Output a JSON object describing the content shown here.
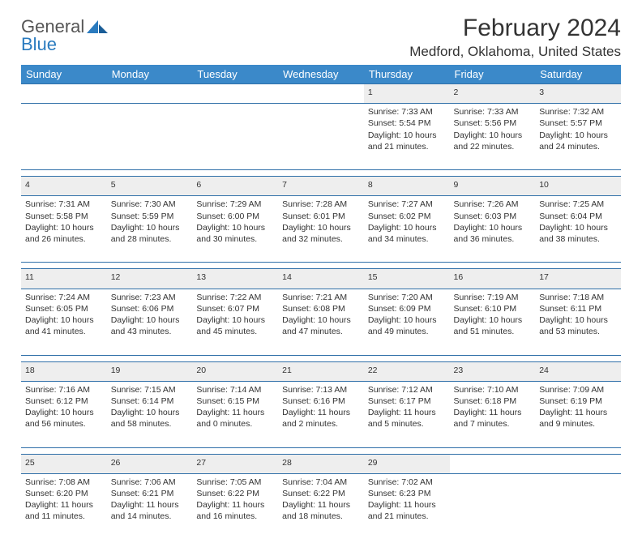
{
  "logo": {
    "part1": "General",
    "part2": "Blue"
  },
  "title": "February 2024",
  "location": "Medford, Oklahoma, United States",
  "colors": {
    "header_bg": "#3b89c9",
    "header_text": "#ffffff",
    "row_border": "#2f6fa8",
    "daynum_bg": "#eeeeee",
    "logo_blue": "#2a7bbf"
  },
  "weekdays": [
    "Sunday",
    "Monday",
    "Tuesday",
    "Wednesday",
    "Thursday",
    "Friday",
    "Saturday"
  ],
  "weeks": [
    [
      null,
      null,
      null,
      null,
      {
        "n": "1",
        "sr": "7:33 AM",
        "ss": "5:54 PM",
        "dl": "10 hours and 21 minutes."
      },
      {
        "n": "2",
        "sr": "7:33 AM",
        "ss": "5:56 PM",
        "dl": "10 hours and 22 minutes."
      },
      {
        "n": "3",
        "sr": "7:32 AM",
        "ss": "5:57 PM",
        "dl": "10 hours and 24 minutes."
      }
    ],
    [
      {
        "n": "4",
        "sr": "7:31 AM",
        "ss": "5:58 PM",
        "dl": "10 hours and 26 minutes."
      },
      {
        "n": "5",
        "sr": "7:30 AM",
        "ss": "5:59 PM",
        "dl": "10 hours and 28 minutes."
      },
      {
        "n": "6",
        "sr": "7:29 AM",
        "ss": "6:00 PM",
        "dl": "10 hours and 30 minutes."
      },
      {
        "n": "7",
        "sr": "7:28 AM",
        "ss": "6:01 PM",
        "dl": "10 hours and 32 minutes."
      },
      {
        "n": "8",
        "sr": "7:27 AM",
        "ss": "6:02 PM",
        "dl": "10 hours and 34 minutes."
      },
      {
        "n": "9",
        "sr": "7:26 AM",
        "ss": "6:03 PM",
        "dl": "10 hours and 36 minutes."
      },
      {
        "n": "10",
        "sr": "7:25 AM",
        "ss": "6:04 PM",
        "dl": "10 hours and 38 minutes."
      }
    ],
    [
      {
        "n": "11",
        "sr": "7:24 AM",
        "ss": "6:05 PM",
        "dl": "10 hours and 41 minutes."
      },
      {
        "n": "12",
        "sr": "7:23 AM",
        "ss": "6:06 PM",
        "dl": "10 hours and 43 minutes."
      },
      {
        "n": "13",
        "sr": "7:22 AM",
        "ss": "6:07 PM",
        "dl": "10 hours and 45 minutes."
      },
      {
        "n": "14",
        "sr": "7:21 AM",
        "ss": "6:08 PM",
        "dl": "10 hours and 47 minutes."
      },
      {
        "n": "15",
        "sr": "7:20 AM",
        "ss": "6:09 PM",
        "dl": "10 hours and 49 minutes."
      },
      {
        "n": "16",
        "sr": "7:19 AM",
        "ss": "6:10 PM",
        "dl": "10 hours and 51 minutes."
      },
      {
        "n": "17",
        "sr": "7:18 AM",
        "ss": "6:11 PM",
        "dl": "10 hours and 53 minutes."
      }
    ],
    [
      {
        "n": "18",
        "sr": "7:16 AM",
        "ss": "6:12 PM",
        "dl": "10 hours and 56 minutes."
      },
      {
        "n": "19",
        "sr": "7:15 AM",
        "ss": "6:14 PM",
        "dl": "10 hours and 58 minutes."
      },
      {
        "n": "20",
        "sr": "7:14 AM",
        "ss": "6:15 PM",
        "dl": "11 hours and 0 minutes."
      },
      {
        "n": "21",
        "sr": "7:13 AM",
        "ss": "6:16 PM",
        "dl": "11 hours and 2 minutes."
      },
      {
        "n": "22",
        "sr": "7:12 AM",
        "ss": "6:17 PM",
        "dl": "11 hours and 5 minutes."
      },
      {
        "n": "23",
        "sr": "7:10 AM",
        "ss": "6:18 PM",
        "dl": "11 hours and 7 minutes."
      },
      {
        "n": "24",
        "sr": "7:09 AM",
        "ss": "6:19 PM",
        "dl": "11 hours and 9 minutes."
      }
    ],
    [
      {
        "n": "25",
        "sr": "7:08 AM",
        "ss": "6:20 PM",
        "dl": "11 hours and 11 minutes."
      },
      {
        "n": "26",
        "sr": "7:06 AM",
        "ss": "6:21 PM",
        "dl": "11 hours and 14 minutes."
      },
      {
        "n": "27",
        "sr": "7:05 AM",
        "ss": "6:22 PM",
        "dl": "11 hours and 16 minutes."
      },
      {
        "n": "28",
        "sr": "7:04 AM",
        "ss": "6:22 PM",
        "dl": "11 hours and 18 minutes."
      },
      {
        "n": "29",
        "sr": "7:02 AM",
        "ss": "6:23 PM",
        "dl": "11 hours and 21 minutes."
      },
      null,
      null
    ]
  ],
  "labels": {
    "sunrise": "Sunrise: ",
    "sunset": "Sunset: ",
    "daylight": "Daylight: "
  }
}
